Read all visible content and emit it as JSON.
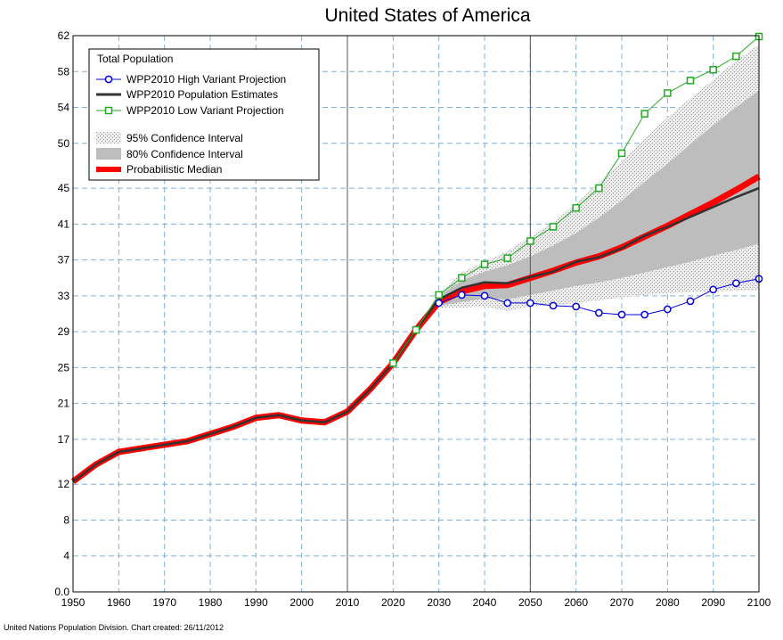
{
  "chart_data": {
    "type": "line",
    "title": "United States of America",
    "xlabel": "",
    "ylabel": "",
    "xlim": [
      1950,
      2100
    ],
    "ylim": [
      0,
      62
    ],
    "x_ticks": [
      1950,
      1960,
      1970,
      1980,
      1990,
      2000,
      2010,
      2020,
      2030,
      2040,
      2050,
      2060,
      2070,
      2080,
      2090,
      2100
    ],
    "y_ticks": [
      0,
      4,
      8,
      12,
      17,
      21,
      25,
      29,
      33,
      37,
      41,
      45,
      50,
      54,
      58,
      62
    ],
    "y_tick_labels": [
      "0.0",
      "4",
      "8",
      "12",
      "17",
      "21",
      "25",
      "29",
      "33",
      "37",
      "41",
      "45",
      "50",
      "54",
      "58",
      "62"
    ],
    "grid": true,
    "vertical_reference_lines": [
      2010,
      2050
    ],
    "legend": {
      "title": "Total Population",
      "placement": "top-left",
      "items": [
        {
          "label": "WPP2010 High Variant Projection",
          "color": "#0000dd",
          "marker": "circle"
        },
        {
          "label": "WPP2010 Population Estimates",
          "color": "#333333",
          "marker": "none"
        },
        {
          "label": "WPP2010 Low Variant Projection",
          "color": "#22aa22",
          "marker": "square"
        },
        {
          "label": "95% Confidence Interval",
          "color": "#d9d9d9",
          "marker": "hatched-band"
        },
        {
          "label": "80% Confidence Interval",
          "color": "#bdbdbd",
          "marker": "band"
        },
        {
          "label": "Probabilistic Median",
          "color": "#ff0000",
          "marker": "none"
        }
      ]
    },
    "series": [
      {
        "name": "WPP2010 Population Estimates",
        "color": "#333333",
        "x": [
          1950,
          1955,
          1960,
          1965,
          1970,
          1975,
          1980,
          1985,
          1990,
          1995,
          2000,
          2005,
          2010,
          2015,
          2020,
          2025,
          2030,
          2035,
          2040,
          2045,
          2050,
          2055,
          2060,
          2065,
          2070,
          2075,
          2080,
          2085,
          2090,
          2095,
          2100
        ],
        "values": [
          12.3,
          14.2,
          15.6,
          16.0,
          16.4,
          16.8,
          17.6,
          18.4,
          19.4,
          19.7,
          19.1,
          18.9,
          20.1,
          22.6,
          25.5,
          29.2,
          32.6,
          33.9,
          34.5,
          34.4,
          35.1,
          35.7,
          36.8,
          37.3,
          38.3,
          39.7,
          40.7,
          41.8,
          42.9,
          44.0,
          45.0
        ]
      },
      {
        "name": "Probabilistic Median",
        "color": "#ff0000",
        "x": [
          1950,
          1955,
          1960,
          1965,
          1970,
          1975,
          1980,
          1985,
          1990,
          1995,
          2000,
          2005,
          2010,
          2015,
          2020,
          2025,
          2030,
          2035,
          2040,
          2045,
          2050,
          2055,
          2060,
          2065,
          2070,
          2075,
          2080,
          2085,
          2090,
          2095,
          2100
        ],
        "values": [
          12.3,
          14.2,
          15.6,
          16.0,
          16.4,
          16.8,
          17.6,
          18.4,
          19.4,
          19.7,
          19.1,
          18.9,
          20.1,
          22.6,
          25.5,
          29.2,
          32.3,
          33.5,
          34.1,
          34.2,
          35.0,
          35.8,
          36.7,
          37.4,
          38.4,
          39.6,
          40.8,
          42.1,
          43.4,
          44.8,
          46.3
        ]
      },
      {
        "name": "WPP2010 High Variant Projection",
        "color": "#0000dd",
        "x": [
          2030,
          2035,
          2040,
          2045,
          2050,
          2055,
          2060,
          2065,
          2070,
          2075,
          2080,
          2085,
          2090,
          2095,
          2100
        ],
        "values": [
          32.2,
          33.1,
          33.0,
          32.2,
          32.2,
          31.9,
          31.8,
          31.1,
          30.9,
          30.9,
          31.5,
          32.4,
          33.7,
          34.4,
          34.9
        ]
      },
      {
        "name": "WPP2010 Low Variant Projection",
        "color": "#22aa22",
        "x": [
          2020,
          2025,
          2030,
          2035,
          2040,
          2045,
          2050,
          2055,
          2060,
          2065,
          2070,
          2075,
          2080,
          2085,
          2090,
          2095,
          2100
        ],
        "values": [
          25.5,
          29.2,
          33.1,
          35.0,
          36.5,
          37.2,
          39.1,
          40.7,
          42.8,
          45.0,
          48.9,
          53.3,
          55.6,
          57.0,
          58.2,
          59.7,
          61.9
        ]
      }
    ],
    "bands": [
      {
        "name": "95% Confidence Interval",
        "x": [
          2025,
          2030,
          2035,
          2040,
          2045,
          2050,
          2055,
          2060,
          2065,
          2070,
          2075,
          2080,
          2085,
          2090,
          2095,
          2100
        ],
        "lower": [
          29.2,
          31.6,
          31.7,
          31.8,
          31.3,
          31.8,
          31.9,
          32.2,
          32.5,
          32.8,
          33.1,
          33.3,
          33.4,
          33.5,
          33.6,
          33.6
        ],
        "upper": [
          29.2,
          33.3,
          35.6,
          36.8,
          38.0,
          39.6,
          41.2,
          43.3,
          45.6,
          48.0,
          50.5,
          52.9,
          55.0,
          57.1,
          59.2,
          61.0
        ]
      },
      {
        "name": "80% Confidence Interval",
        "x": [
          2025,
          2030,
          2035,
          2040,
          2045,
          2050,
          2055,
          2060,
          2065,
          2070,
          2075,
          2080,
          2085,
          2090,
          2095,
          2100
        ],
        "lower": [
          29.2,
          31.9,
          32.3,
          32.7,
          32.6,
          33.1,
          33.6,
          34.1,
          34.5,
          35.0,
          35.6,
          36.2,
          36.8,
          37.5,
          38.1,
          38.8
        ],
        "upper": [
          29.2,
          33.0,
          34.7,
          35.7,
          36.4,
          37.4,
          38.6,
          40.0,
          41.7,
          43.6,
          45.7,
          47.7,
          49.9,
          52.0,
          54.0,
          55.9
        ]
      }
    ],
    "footer": "United Nations Population Division.  Chart created:  26/11/2012"
  }
}
